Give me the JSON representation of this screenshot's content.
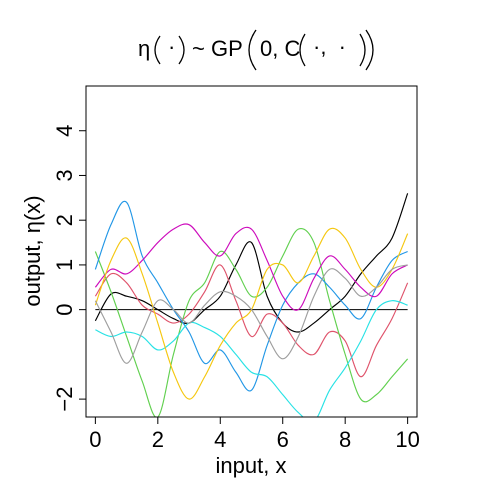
{
  "chart_data": {
    "type": "line",
    "title": "η(·) ~ GP(0, C(·, ·))",
    "title_parts": {
      "eta": "η",
      "dot": "·",
      "tilde_gp": "~ GP",
      "zero": "0, C",
      "sep": "·,  ·"
    },
    "xlabel": "input, x",
    "ylabel": "output, η(x)",
    "xlim": [
      -0.3,
      10.3
    ],
    "ylim": [
      -2.4,
      5.0
    ],
    "xticks": [
      0,
      2,
      4,
      6,
      8,
      10
    ],
    "xtick_labels": [
      "0",
      "2",
      "4",
      "6",
      "8",
      "10"
    ],
    "yticks": [
      -2,
      0,
      1,
      2,
      3,
      4
    ],
    "ytick_labels": [
      "−2",
      "0",
      "1",
      "2",
      "3",
      "4"
    ],
    "grid": false,
    "legend": "none",
    "mean_line": {
      "value": 0,
      "color": "#000000"
    },
    "x": [
      0,
      0.5,
      1,
      1.5,
      2,
      2.5,
      3,
      3.5,
      4,
      4.5,
      5,
      5.5,
      6,
      6.5,
      7,
      7.5,
      8,
      8.5,
      9,
      9.5,
      10
    ],
    "series": [
      {
        "color": "#000000",
        "values": [
          -0.25,
          0.35,
          0.3,
          0.2,
          0.0,
          -0.2,
          -0.3,
          0.0,
          0.3,
          1.0,
          1.5,
          0.3,
          -0.3,
          -0.5,
          -0.3,
          0.0,
          0.3,
          0.8,
          1.2,
          1.6,
          2.6
        ]
      },
      {
        "color": "#DF536B",
        "values": [
          0.3,
          0.8,
          0.6,
          0.1,
          -0.1,
          -0.3,
          -0.1,
          0.4,
          1.0,
          0.2,
          -0.6,
          -0.1,
          -0.3,
          -0.8,
          -1.0,
          -0.5,
          -0.7,
          -1.5,
          -0.8,
          -0.2,
          0.6
        ]
      },
      {
        "color": "#61D04F",
        "values": [
          1.3,
          0.4,
          -0.6,
          -1.6,
          -2.4,
          -1.0,
          0.2,
          0.6,
          1.3,
          0.9,
          0.3,
          0.5,
          1.2,
          1.8,
          1.5,
          0.2,
          -1.0,
          -2.0,
          -1.9,
          -1.5,
          -1.1
        ]
      },
      {
        "color": "#2297E6",
        "values": [
          0.9,
          1.9,
          2.4,
          1.2,
          0.6,
          0.0,
          -0.5,
          -1.2,
          -0.9,
          -1.4,
          -1.8,
          -0.8,
          0.1,
          0.6,
          0.8,
          0.5,
          0.1,
          -0.2,
          0.5,
          1.1,
          1.3
        ]
      },
      {
        "color": "#28E2E5",
        "values": [
          -0.45,
          -0.6,
          -0.5,
          -0.6,
          -0.9,
          -0.7,
          -0.3,
          -0.4,
          -0.6,
          -1.0,
          -1.4,
          -1.5,
          -1.9,
          -2.3,
          -2.5,
          -1.8,
          -1.3,
          -0.7,
          0.0,
          0.2,
          0.1
        ]
      },
      {
        "color": "#CD0BBC",
        "values": [
          0.5,
          0.9,
          0.8,
          1.1,
          1.5,
          1.8,
          1.9,
          1.5,
          1.2,
          1.7,
          1.8,
          1.1,
          0.3,
          0.0,
          0.7,
          1.2,
          0.9,
          0.5,
          0.3,
          0.8,
          1.0
        ]
      },
      {
        "color": "#F5C710",
        "values": [
          0.1,
          1.1,
          1.6,
          0.8,
          -0.3,
          -1.4,
          -2.0,
          -1.5,
          -0.8,
          -0.3,
          0.0,
          0.9,
          1.0,
          0.6,
          1.2,
          1.8,
          1.6,
          0.9,
          0.5,
          0.9,
          1.7
        ]
      },
      {
        "color": "#9E9E9E",
        "values": [
          0.2,
          -0.5,
          -1.2,
          -0.5,
          0.2,
          0.0,
          -0.3,
          0.1,
          0.4,
          0.3,
          0.0,
          -0.6,
          -1.1,
          -0.6,
          0.3,
          0.9,
          0.7,
          0.3,
          0.5,
          0.9,
          1.0
        ]
      }
    ]
  }
}
